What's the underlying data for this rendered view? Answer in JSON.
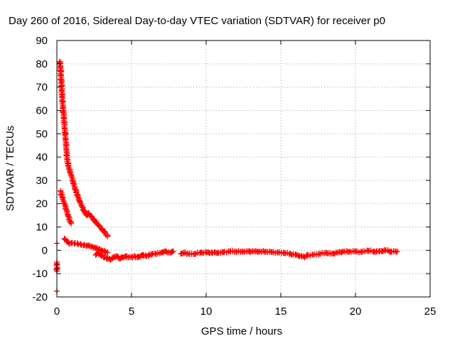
{
  "chart_data": {
    "type": "scatter",
    "title": "Day 260 of 2016, Sidereal Day-to-day VTEC variation (SDTVAR) for receiver p0",
    "xlabel": "GPS time / hours",
    "ylabel": "SDTVAR / TECUs",
    "xlim": [
      0,
      25
    ],
    "ylim": [
      -20,
      90
    ],
    "xticks": [
      "0",
      "5",
      "10",
      "15",
      "20",
      "25"
    ],
    "yticks": [
      "-20",
      "-10",
      "0",
      "10",
      "20",
      "30",
      "40",
      "50",
      "60",
      "70",
      "80",
      "90"
    ],
    "grid": true,
    "legend": "none",
    "series": [
      {
        "name": "SDTVAR",
        "color": "#ff0000",
        "marker": "+",
        "points": [
          [
            0.0,
            3.0
          ],
          [
            0.0,
            -5.0
          ],
          [
            0.0,
            -9.0
          ],
          [
            0.0,
            -17.5
          ],
          [
            0.2,
            81.0
          ],
          [
            0.25,
            78.0
          ],
          [
            0.3,
            72.0
          ],
          [
            0.35,
            66.0
          ],
          [
            0.4,
            62.0
          ],
          [
            0.45,
            58.0
          ],
          [
            0.5,
            54.0
          ],
          [
            0.55,
            50.0
          ],
          [
            0.6,
            46.0
          ],
          [
            0.65,
            42.0
          ],
          [
            0.7,
            39.0
          ],
          [
            0.75,
            36.5
          ],
          [
            0.8,
            35.5
          ],
          [
            0.9,
            33.5
          ],
          [
            1.0,
            31.5
          ],
          [
            1.1,
            29.0
          ],
          [
            1.2,
            27.0
          ],
          [
            1.3,
            25.0
          ],
          [
            1.4,
            23.0
          ],
          [
            1.5,
            21.5
          ],
          [
            1.6,
            20.0
          ],
          [
            1.7,
            18.5
          ],
          [
            1.8,
            17.0
          ],
          [
            1.9,
            16.0
          ],
          [
            2.0,
            15.0
          ],
          [
            2.1,
            16.0
          ],
          [
            2.3,
            14.5
          ],
          [
            2.5,
            13.0
          ],
          [
            2.7,
            11.5
          ],
          [
            2.9,
            10.0
          ],
          [
            3.1,
            8.5
          ],
          [
            3.3,
            7.0
          ],
          [
            3.4,
            6.0
          ],
          [
            0.25,
            25.5
          ],
          [
            0.35,
            23.0
          ],
          [
            0.45,
            21.0
          ],
          [
            0.55,
            19.0
          ],
          [
            0.65,
            17.0
          ],
          [
            0.75,
            15.0
          ],
          [
            0.85,
            13.0
          ],
          [
            0.95,
            11.5
          ],
          [
            0.5,
            5.0
          ],
          [
            0.65,
            4.0
          ],
          [
            0.8,
            3.0
          ],
          [
            1.0,
            3.2
          ],
          [
            1.2,
            3.0
          ],
          [
            1.4,
            2.8
          ],
          [
            1.6,
            2.5
          ],
          [
            1.8,
            2.2
          ],
          [
            2.0,
            2.0
          ],
          [
            2.2,
            1.8
          ],
          [
            2.4,
            1.5
          ],
          [
            2.6,
            1.0
          ],
          [
            2.8,
            0.5
          ],
          [
            3.0,
            0.0
          ],
          [
            3.2,
            -0.5
          ],
          [
            3.4,
            -1.0
          ],
          [
            2.6,
            -2.0
          ],
          [
            2.8,
            -1.0
          ],
          [
            3.0,
            -2.5
          ],
          [
            3.2,
            -3.0
          ],
          [
            3.4,
            -3.5
          ],
          [
            3.6,
            -4.0
          ],
          [
            3.8,
            -3.0
          ],
          [
            4.0,
            -2.5
          ],
          [
            4.2,
            -3.5
          ],
          [
            4.4,
            -3.0
          ],
          [
            4.6,
            -2.5
          ],
          [
            4.8,
            -3.0
          ],
          [
            5.0,
            -3.0
          ],
          [
            5.2,
            -2.5
          ],
          [
            5.4,
            -3.0
          ],
          [
            5.6,
            -2.5
          ],
          [
            5.8,
            -2.0
          ],
          [
            6.0,
            -2.5
          ],
          [
            6.2,
            -2.0
          ],
          [
            6.4,
            -1.5
          ],
          [
            6.6,
            -1.5
          ],
          [
            7.0,
            -1.0
          ],
          [
            7.2,
            -0.5
          ],
          [
            7.6,
            -1.0
          ],
          [
            7.8,
            -0.5
          ],
          [
            8.3,
            -1.5
          ],
          [
            8.5,
            -1.0
          ],
          [
            8.8,
            -1.5
          ],
          [
            9.2,
            -1.5
          ],
          [
            9.6,
            -1.0
          ],
          [
            10.0,
            -1.0
          ],
          [
            10.4,
            -1.0
          ],
          [
            10.8,
            -1.0
          ],
          [
            11.2,
            -0.8
          ],
          [
            11.6,
            -0.5
          ],
          [
            12.0,
            -0.5
          ],
          [
            12.4,
            -0.5
          ],
          [
            12.8,
            -0.5
          ],
          [
            13.2,
            -0.5
          ],
          [
            13.6,
            -0.5
          ],
          [
            14.0,
            -0.5
          ],
          [
            14.4,
            -0.8
          ],
          [
            14.8,
            -1.0
          ],
          [
            15.2,
            -1.0
          ],
          [
            15.6,
            -1.5
          ],
          [
            16.0,
            -2.0
          ],
          [
            16.4,
            -2.5
          ],
          [
            16.6,
            -3.0
          ],
          [
            16.8,
            -2.0
          ],
          [
            17.2,
            -2.0
          ],
          [
            17.6,
            -1.5
          ],
          [
            18.0,
            -1.0
          ],
          [
            18.4,
            -1.5
          ],
          [
            18.8,
            -1.0
          ],
          [
            19.2,
            -0.5
          ],
          [
            19.6,
            -0.5
          ],
          [
            20.0,
            -0.5
          ],
          [
            20.4,
            -0.8
          ],
          [
            20.8,
            0.0
          ],
          [
            21.2,
            -0.5
          ],
          [
            21.6,
            -0.5
          ],
          [
            22.0,
            0.0
          ],
          [
            22.4,
            -0.5
          ],
          [
            22.8,
            -0.5
          ]
        ]
      }
    ]
  }
}
